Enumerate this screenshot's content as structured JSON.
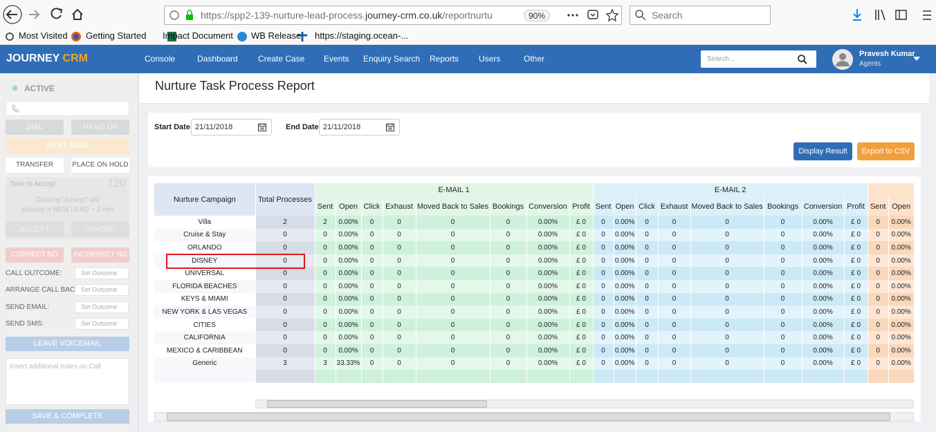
{
  "browser": {
    "url_prefix": "https://spp2-139-nurture-lead-process.",
    "url_domain": "journey-crm.co.uk",
    "url_path": "/reportnurtu",
    "zoom": "90%",
    "search_placeholder": "Search",
    "bookmarks": [
      "Most Visited",
      "Getting Started",
      "Impact Document",
      "WB Release",
      "https://staging.ocean-..."
    ]
  },
  "nav": {
    "brand_main": "JOURNEY",
    "brand_accent": "CRM",
    "items": [
      "Console",
      "Dashboard",
      "Create Case",
      "Events",
      "Enquiry Search",
      "Reports",
      "Users",
      "Other"
    ],
    "search_placeholder": "Search...",
    "user_name": "Pravesh Kumar",
    "user_role": "Agents"
  },
  "sidebar": {
    "status": "ACTIVE",
    "dial": "DIAL",
    "hang_up": "HANG UP",
    "next_task": "NEXT TASK",
    "transfer": "TRANSFER",
    "hold": "PLACE ON HOLD",
    "time_to_accept": "Time to Accept",
    "timer": 120,
    "accept_note_1": "Clicking \"Accept\" will",
    "accept_note_2": "allocate a NEW LEAD ~ 2 min",
    "accept": "ACCEPT",
    "ignore": "IGNORE",
    "correct": "CORRECT NO",
    "incorrect": "INCORRECT NO",
    "fields": [
      {
        "label": "CALL OUTCOME:",
        "select": "Set Outcome"
      },
      {
        "label": "ARRANGE CALL BACK:",
        "select": "Set Outcome"
      },
      {
        "label": "SEND EMAIL:",
        "select": "Set Outcome"
      },
      {
        "label": "SEND SMS:",
        "select": "Set Outcome"
      }
    ],
    "voicemail": "LEAVE VOICEMAIL",
    "notes_placeholder": "Insert additional notes on Call",
    "save": "SAVE & COMPLETE"
  },
  "page": {
    "title": "Nurture Task Process Report",
    "start_label": "Start Date",
    "start_date": "21/11/2018",
    "end_label": "End Date",
    "end_date": "21/11/2018",
    "display_button": "Display Result",
    "export_button": "Export to CSV"
  },
  "table": {
    "campaign_header": "Nurture Campaign",
    "total_header": "Total Processes",
    "groups": [
      "E-MAIL 1",
      "E-MAIL 2"
    ],
    "group_columns": [
      [
        "Sent",
        "Open",
        "Click",
        "Exhaust",
        "Moved Back to Sales",
        "Bookings",
        "Conversion",
        "Profit"
      ],
      [
        "Sent",
        "Open",
        "Click",
        "Exhaust",
        "Moved Back to Sales",
        "Bookings",
        "Conversion",
        "Profit"
      ],
      [
        "Sent",
        "Open"
      ]
    ],
    "rows": [
      [
        "Villa",
        2,
        2,
        "0.00%",
        0,
        0,
        0,
        0,
        "0.00%",
        "£ 0",
        0,
        "0.00%",
        0,
        0,
        0,
        0,
        "0.00%",
        "£ 0",
        0,
        "0.00%"
      ],
      [
        "Cruise & Stay",
        0,
        0,
        "0.00%",
        0,
        0,
        0,
        0,
        "0.00%",
        "£ 0",
        0,
        "0.00%",
        0,
        0,
        0,
        0,
        "0.00%",
        "£ 0",
        0,
        "0.00%"
      ],
      [
        "ORLANDO",
        0,
        0,
        "0.00%",
        0,
        0,
        0,
        0,
        "0.00%",
        "£ 0",
        0,
        "0.00%",
        0,
        0,
        0,
        0,
        "0.00%",
        "£ 0",
        0,
        "0.00%"
      ],
      [
        "DISNEY",
        0,
        0,
        "0.00%",
        0,
        0,
        0,
        0,
        "0.00%",
        "£ 0",
        0,
        "0.00%",
        0,
        0,
        0,
        0,
        "0.00%",
        "£ 0",
        0,
        "0.00%"
      ],
      [
        "UNIVERSAL",
        0,
        0,
        "0.00%",
        0,
        0,
        0,
        0,
        "0.00%",
        "£ 0",
        0,
        "0.00%",
        0,
        0,
        0,
        0,
        "0.00%",
        "£ 0",
        0,
        "0.00%"
      ],
      [
        "FLORIDA BEACHES",
        0,
        0,
        "0.00%",
        0,
        0,
        0,
        0,
        "0.00%",
        "£ 0",
        0,
        "0.00%",
        0,
        0,
        0,
        0,
        "0.00%",
        "£ 0",
        0,
        "0.00%"
      ],
      [
        "KEYS & MIAMI",
        0,
        0,
        "0.00%",
        0,
        0,
        0,
        0,
        "0.00%",
        "£ 0",
        0,
        "0.00%",
        0,
        0,
        0,
        0,
        "0.00%",
        "£ 0",
        0,
        "0.00%"
      ],
      [
        "NEW YORK & LAS VEGAS",
        0,
        0,
        "0.00%",
        0,
        0,
        0,
        0,
        "0.00%",
        "£ 0",
        0,
        "0.00%",
        0,
        0,
        0,
        0,
        "0.00%",
        "£ 0",
        0,
        "0.00%"
      ],
      [
        "CITIES",
        0,
        0,
        "0.00%",
        0,
        0,
        0,
        0,
        "0.00%",
        "£ 0",
        0,
        "0.00%",
        0,
        0,
        0,
        0,
        "0.00%",
        "£ 0",
        0,
        "0.00%"
      ],
      [
        "CALIFORNIA",
        0,
        0,
        "0.00%",
        0,
        0,
        0,
        0,
        "0.00%",
        "£ 0",
        0,
        "0.00%",
        0,
        0,
        0,
        0,
        "0.00%",
        "£ 0",
        0,
        "0.00%"
      ],
      [
        "MEXICO & CARIBBEAN",
        0,
        0,
        "0.00%",
        0,
        0,
        0,
        0,
        "0.00%",
        "£ 0",
        0,
        "0.00%",
        0,
        0,
        0,
        0,
        "0.00%",
        "£ 0",
        0,
        "0.00%"
      ],
      [
        "Generic",
        3,
        3,
        "33.33%",
        0,
        0,
        0,
        0,
        "0.00%",
        "£ 0",
        0,
        "0.00%",
        0,
        0,
        0,
        0,
        "0.00%",
        "£ 0",
        0,
        "0.00%"
      ]
    ]
  }
}
